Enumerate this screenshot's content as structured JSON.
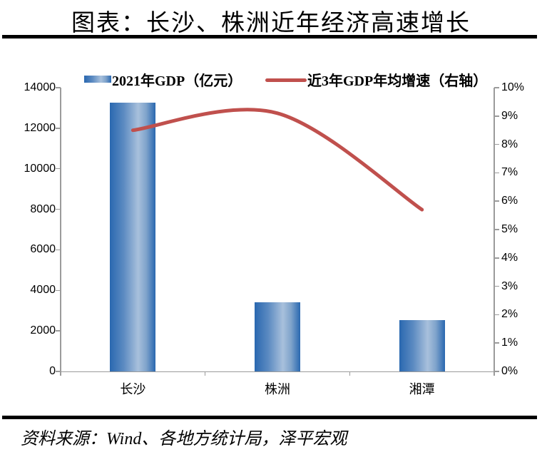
{
  "page": {
    "title": "图表：长沙、株洲近年经济高速增长",
    "source_note": "资料来源：Wind、各地方统计局，泽平宏观"
  },
  "colors": {
    "bar_edge": "#2a68b0",
    "bar_center": "#a8c0dc",
    "line": "#c0504d",
    "axis": "#9b9b9b",
    "rule": "#000000"
  },
  "chart_data": {
    "type": "combo-bar-line",
    "title": "图表：长沙、株洲近年经济高速增长",
    "categories": [
      "长沙",
      "株洲",
      "湘潭"
    ],
    "series": [
      {
        "name": "2021年GDP（亿元）",
        "type": "bar",
        "axis": "left",
        "values": [
          13270,
          3420,
          2550
        ]
      },
      {
        "name": "近3年GDP年均增速（右轴）",
        "type": "line",
        "axis": "right",
        "unit": "%",
        "values": [
          8.5,
          9.1,
          5.7
        ]
      }
    ],
    "left_axis": {
      "min": 0,
      "max": 14000,
      "step": 2000,
      "tick_labels": [
        "0",
        "2000",
        "4000",
        "6000",
        "8000",
        "10000",
        "12000",
        "14000"
      ]
    },
    "right_axis": {
      "min": 0,
      "max": 10,
      "step": 1,
      "unit": "%",
      "tick_labels": [
        "0%",
        "1%",
        "2%",
        "3%",
        "4%",
        "5%",
        "6%",
        "7%",
        "8%",
        "9%",
        "10%"
      ]
    },
    "legend_position": "top",
    "grid": false,
    "line_style": "smooth"
  }
}
